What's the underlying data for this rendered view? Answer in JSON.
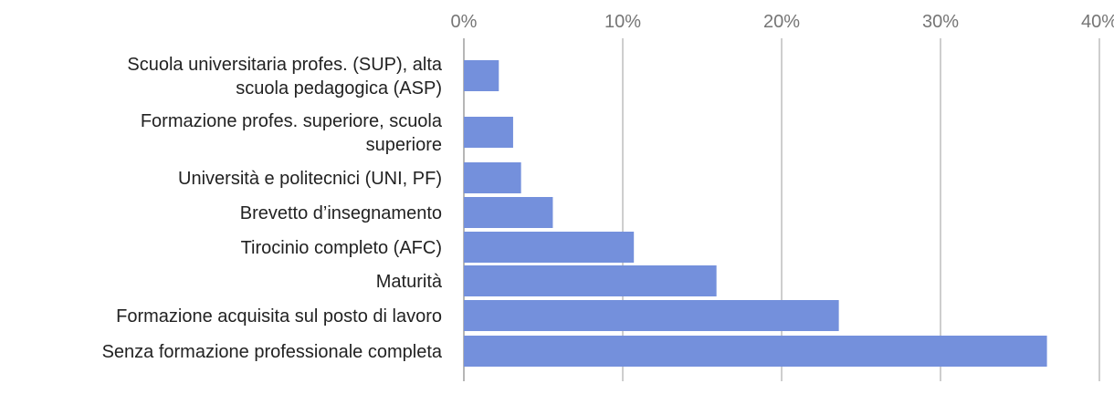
{
  "chart_data": {
    "type": "bar",
    "orientation": "horizontal",
    "categories": [
      "Scuola universitaria profes. (SUP), alta scuola pedagogica (ASP)",
      "Formazione profes. superiore, scuola superiore",
      "Università e politecnici (UNI, PF)",
      "Brevetto d’insegnamento",
      "Tirocinio completo (AFC)",
      "Maturità",
      "Formazione acquisita sul posto di lavoro",
      "Senza formazione professionale completa"
    ],
    "category_lines": [
      [
        "Scuola universitaria profes. (SUP), alta",
        "scuola pedagogica (ASP)"
      ],
      [
        "Formazione profes. superiore, scuola",
        "superiore"
      ],
      [
        "Università e politecnici (UNI, PF)"
      ],
      [
        "Brevetto d’insegnamento"
      ],
      [
        "Tirocinio completo (AFC)"
      ],
      [
        "Maturità"
      ],
      [
        "Formazione acquisita sul posto di lavoro"
      ],
      [
        "Senza formazione professionale completa"
      ]
    ],
    "values": [
      2.2,
      3.1,
      3.6,
      5.6,
      10.7,
      15.9,
      23.6,
      36.7
    ],
    "xlim": [
      0,
      40
    ],
    "x_ticks": [
      0,
      10,
      20,
      30,
      40
    ],
    "x_tick_labels": [
      "0%",
      "10%",
      "20%",
      "30%",
      "40%"
    ],
    "x_axis_position": "top",
    "grid": true,
    "bar_color": "#7490dc",
    "grid_color": "#9e9e9e"
  }
}
